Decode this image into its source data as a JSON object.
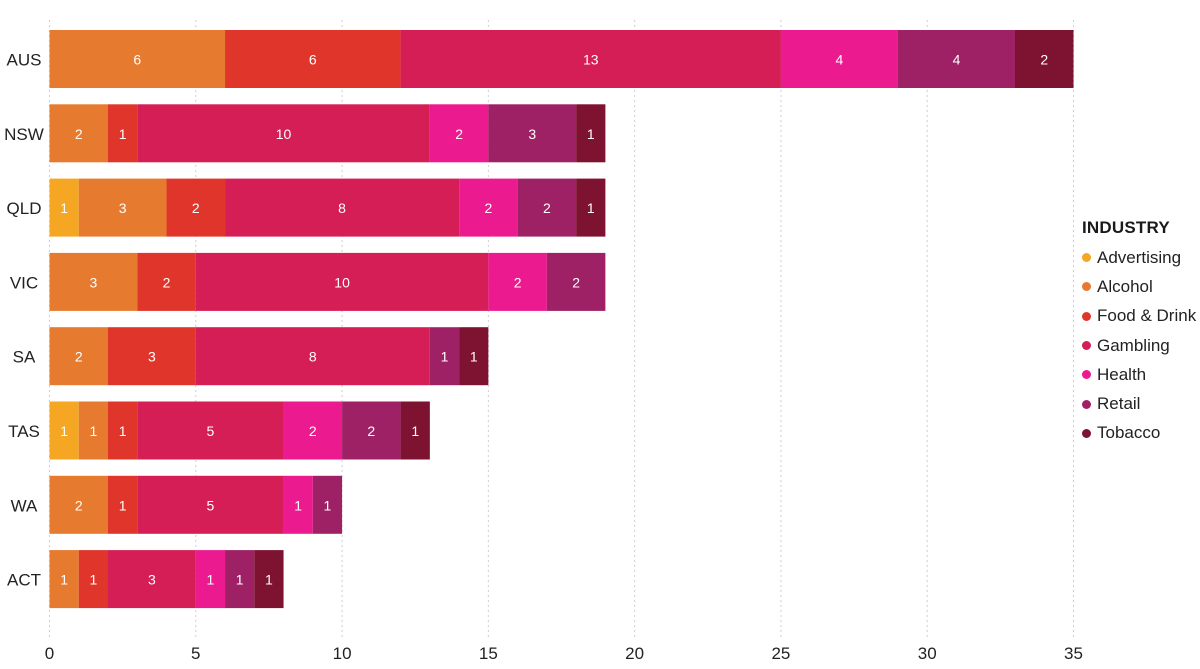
{
  "chart_data": {
    "type": "bar",
    "orientation": "horizontal",
    "stacked": true,
    "categories": [
      "AUS",
      "NSW",
      "QLD",
      "VIC",
      "SA",
      "TAS",
      "WA",
      "ACT"
    ],
    "series": [
      {
        "name": "Advertising",
        "color": "#f5a623",
        "values": [
          0,
          0,
          1,
          0,
          0,
          1,
          0,
          0
        ]
      },
      {
        "name": "Alcohol",
        "color": "#e67a2e",
        "values": [
          6,
          2,
          3,
          3,
          2,
          1,
          2,
          1
        ]
      },
      {
        "name": "Food & Drink",
        "color": "#e0352b",
        "values": [
          6,
          1,
          2,
          2,
          3,
          1,
          1,
          1
        ]
      },
      {
        "name": "Gambling",
        "color": "#d41e55",
        "values": [
          13,
          10,
          8,
          10,
          8,
          5,
          5,
          3
        ]
      },
      {
        "name": "Health",
        "color": "#ec1a8f",
        "values": [
          4,
          2,
          2,
          2,
          0,
          2,
          1,
          1
        ]
      },
      {
        "name": "Retail",
        "color": "#9e2166",
        "values": [
          4,
          3,
          2,
          2,
          1,
          2,
          1,
          1
        ]
      },
      {
        "name": "Tobacco",
        "color": "#7e1231",
        "values": [
          2,
          1,
          1,
          0,
          1,
          1,
          0,
          1
        ]
      }
    ],
    "xlim": [
      0,
      35
    ],
    "x_ticks": [
      0,
      5,
      10,
      15,
      20,
      25,
      30,
      35
    ],
    "grid": "vertical dotted",
    "legend_placement": "right",
    "legend_title": "INDUSTRY"
  }
}
